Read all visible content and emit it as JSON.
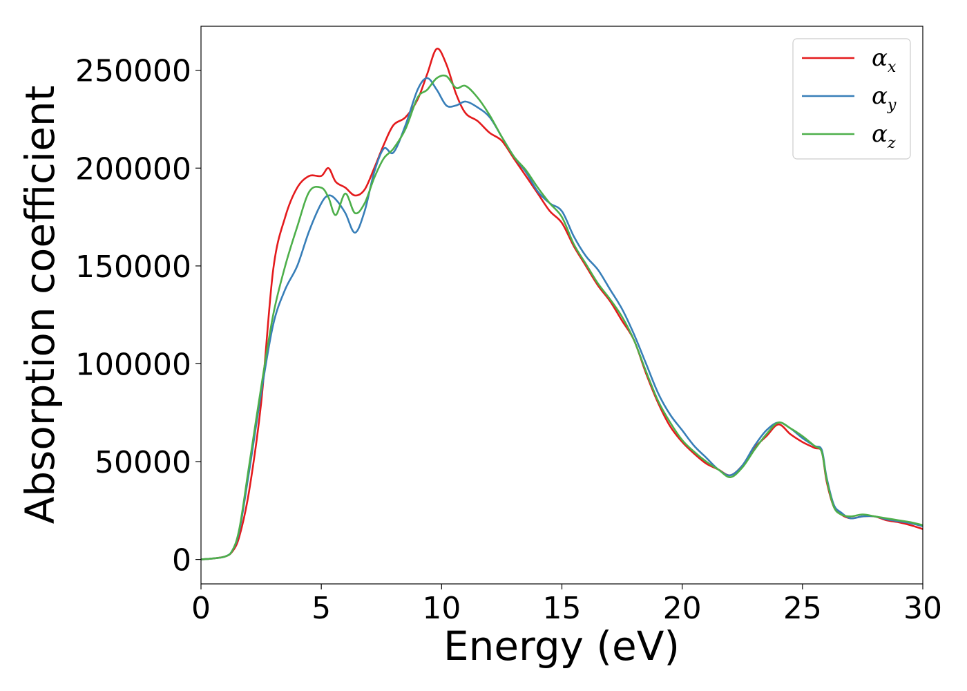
{
  "chart_data": {
    "type": "line",
    "title": "",
    "xlabel": "Energy (eV)",
    "ylabel": "Absorption coefficient",
    "xlim": [
      0,
      30
    ],
    "ylim": [
      -12500,
      272500
    ],
    "xticks": [
      0,
      5,
      10,
      15,
      20,
      25,
      30
    ],
    "xtick_labels": [
      "0",
      "5",
      "10",
      "15",
      "20",
      "25",
      "30"
    ],
    "yticks": [
      0,
      50000,
      100000,
      150000,
      200000,
      250000
    ],
    "ytick_labels": [
      "0",
      "50000",
      "100000",
      "150000",
      "200000",
      "250000"
    ],
    "grid": false,
    "legend_position": "top-right",
    "series": [
      {
        "name": "αx",
        "symbol": "α",
        "subscript": "x",
        "color": "#e41a1c",
        "x": [
          0,
          0.5,
          1,
          1.3,
          1.6,
          2,
          2.5,
          3,
          3.5,
          4,
          4.5,
          5,
          5.3,
          5.6,
          6,
          6.4,
          6.8,
          7.2,
          7.6,
          8,
          8.5,
          9,
          9.4,
          9.8,
          10.2,
          10.6,
          11,
          11.5,
          12,
          12.5,
          13,
          13.5,
          14,
          14.5,
          15,
          15.5,
          16,
          16.5,
          17,
          17.5,
          18,
          18.5,
          19,
          19.5,
          20,
          20.5,
          21,
          21.5,
          22,
          22.5,
          23,
          23.5,
          24,
          24.5,
          25,
          25.5,
          25.8,
          26,
          26.3,
          26.6,
          27,
          27.5,
          28,
          28.5,
          29,
          29.5,
          30
        ],
        "y": [
          0,
          500,
          1500,
          4000,
          12000,
          35000,
          80000,
          148000,
          175000,
          190000,
          196000,
          196000,
          200000,
          193000,
          190000,
          186000,
          189000,
          200000,
          212000,
          222000,
          226000,
          235000,
          248000,
          261000,
          253000,
          238000,
          228000,
          224000,
          218000,
          214000,
          205000,
          196000,
          187000,
          178000,
          172000,
          160000,
          150000,
          140000,
          132000,
          122000,
          112000,
          95000,
          80000,
          68000,
          60000,
          54000,
          49000,
          46000,
          43000,
          48000,
          57000,
          63000,
          69000,
          64000,
          60000,
          57000,
          55000,
          40000,
          27000,
          23000,
          21000,
          22000,
          22000,
          20000,
          19000,
          17500,
          15500
        ]
      },
      {
        "name": "αy",
        "symbol": "α",
        "subscript": "y",
        "color": "#377eb8",
        "x": [
          0,
          0.5,
          1,
          1.3,
          1.6,
          2,
          2.5,
          3,
          3.5,
          4,
          4.5,
          5,
          5.3,
          5.6,
          6,
          6.4,
          6.8,
          7.2,
          7.6,
          8,
          8.5,
          9,
          9.4,
          9.8,
          10.2,
          10.6,
          11,
          11.5,
          12,
          12.5,
          13,
          13.5,
          14,
          14.5,
          15,
          15.5,
          16,
          16.5,
          17,
          17.5,
          18,
          18.5,
          19,
          19.5,
          20,
          20.5,
          21,
          21.5,
          22,
          22.5,
          23,
          23.5,
          24,
          24.5,
          25,
          25.5,
          25.8,
          26,
          26.3,
          26.6,
          27,
          27.5,
          28,
          28.5,
          29,
          29.5,
          30
        ],
        "y": [
          0,
          500,
          1500,
          4500,
          15000,
          45000,
          85000,
          120000,
          138000,
          150000,
          168000,
          182000,
          186000,
          184000,
          177000,
          167000,
          178000,
          198000,
          210000,
          208000,
          222000,
          240000,
          246000,
          240000,
          232000,
          232000,
          234000,
          231000,
          226000,
          216000,
          206000,
          198000,
          188000,
          182000,
          178000,
          165000,
          155000,
          148000,
          138000,
          128000,
          115000,
          100000,
          85000,
          74000,
          66000,
          58000,
          52000,
          46000,
          43000,
          48000,
          58000,
          66000,
          70000,
          67000,
          62000,
          58000,
          56000,
          42000,
          28000,
          24000,
          21000,
          22000,
          22000,
          20500,
          19500,
          18500,
          17000
        ]
      },
      {
        "name": "αz",
        "symbol": "α",
        "subscript": "z",
        "color": "#4daf4a",
        "x": [
          0,
          0.5,
          1,
          1.3,
          1.6,
          2,
          2.5,
          3,
          3.5,
          4,
          4.5,
          5,
          5.3,
          5.6,
          6,
          6.4,
          6.8,
          7.2,
          7.6,
          8,
          8.5,
          9,
          9.4,
          9.8,
          10.2,
          10.6,
          11,
          11.5,
          12,
          12.5,
          13,
          13.5,
          14,
          14.5,
          15,
          15.5,
          16,
          16.5,
          17,
          17.5,
          18,
          18.5,
          19,
          19.5,
          20,
          20.5,
          21,
          21.5,
          22,
          22.5,
          23,
          23.5,
          24,
          24.5,
          25,
          25.5,
          25.8,
          26,
          26.3,
          26.6,
          27,
          27.5,
          28,
          28.5,
          29,
          29.5,
          30
        ],
        "y": [
          0,
          500,
          1500,
          4500,
          16000,
          48000,
          88000,
          125000,
          150000,
          170000,
          188000,
          190000,
          185000,
          176000,
          187000,
          177000,
          182000,
          195000,
          205000,
          210000,
          220000,
          236000,
          240000,
          246000,
          247000,
          241000,
          242000,
          236000,
          227000,
          216000,
          206000,
          199000,
          190000,
          182000,
          175000,
          161000,
          151000,
          141000,
          133000,
          124000,
          112000,
          96000,
          81000,
          70000,
          61000,
          55000,
          50000,
          46000,
          42000,
          47000,
          56000,
          64000,
          70000,
          67000,
          63000,
          58000,
          55000,
          41000,
          27000,
          23000,
          22000,
          23000,
          22000,
          21000,
          20000,
          19000,
          17500
        ]
      }
    ]
  }
}
